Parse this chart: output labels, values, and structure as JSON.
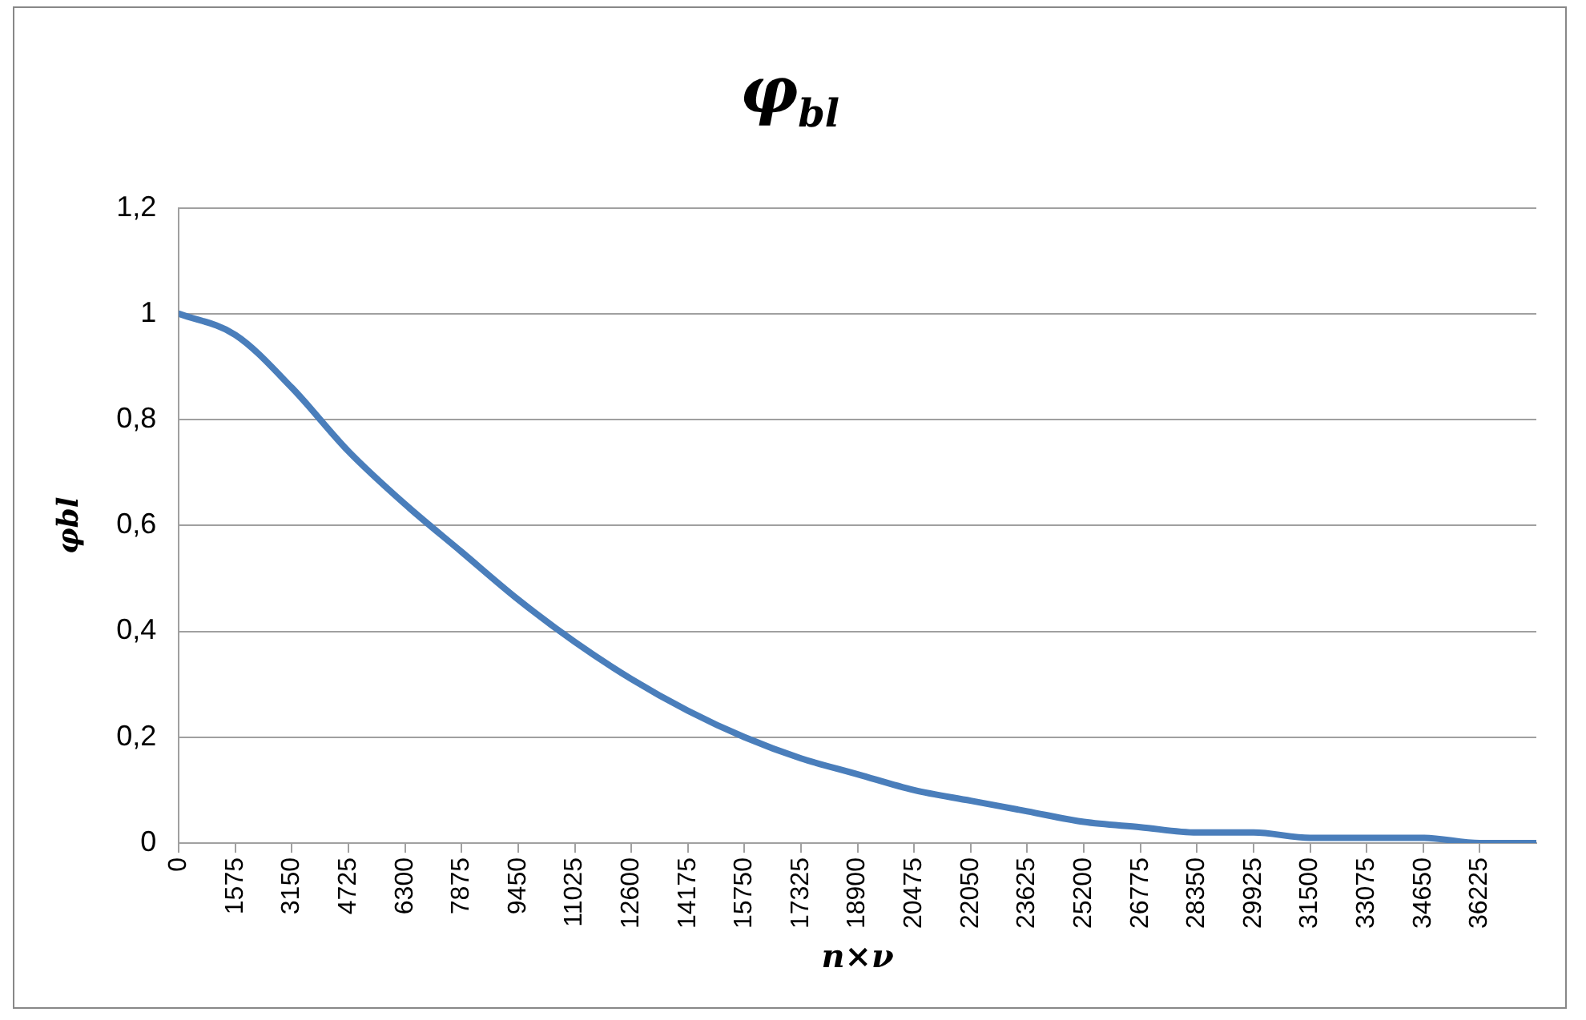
{
  "chart_data": {
    "type": "line",
    "title": "φ$_{bl}$",
    "xlabel": "n×ν",
    "ylabel": "φbl",
    "x": [
      0,
      1575,
      3150,
      4725,
      6300,
      7875,
      9450,
      11025,
      12600,
      14175,
      15750,
      17325,
      18900,
      20475,
      22050,
      23625,
      25200,
      26775,
      28350,
      29925,
      31500,
      33075,
      34650,
      36225,
      37800
    ],
    "series": [
      {
        "color": "#4a7ebb",
        "values": [
          1.0,
          0.96,
          0.86,
          0.74,
          0.64,
          0.55,
          0.46,
          0.38,
          0.31,
          0.25,
          0.2,
          0.16,
          0.13,
          0.1,
          0.08,
          0.06,
          0.04,
          0.03,
          0.02,
          0.02,
          0.01,
          0.01,
          0.01,
          0.0,
          0.0
        ]
      }
    ],
    "xlim": [
      0,
      37800
    ],
    "xticks": [
      0,
      1575,
      3150,
      4725,
      6300,
      7875,
      9450,
      11025,
      12600,
      14175,
      15750,
      17325,
      18900,
      20475,
      22050,
      23625,
      25200,
      26775,
      28350,
      29925,
      31500,
      33075,
      34650,
      36225
    ],
    "ylim": [
      0,
      1.2
    ],
    "yticks": [
      0,
      {
        "value": 0.2,
        "label": "0,2"
      },
      {
        "value": 0.4,
        "label": "0,4"
      },
      {
        "value": 0.6,
        "label": "0,6"
      },
      {
        "value": 0.8,
        "label": "0,8"
      },
      1,
      {
        "value": 1.2,
        "label": "1,2"
      }
    ],
    "grid": "y",
    "legend": false,
    "marker": "none",
    "line_style": "solid"
  }
}
